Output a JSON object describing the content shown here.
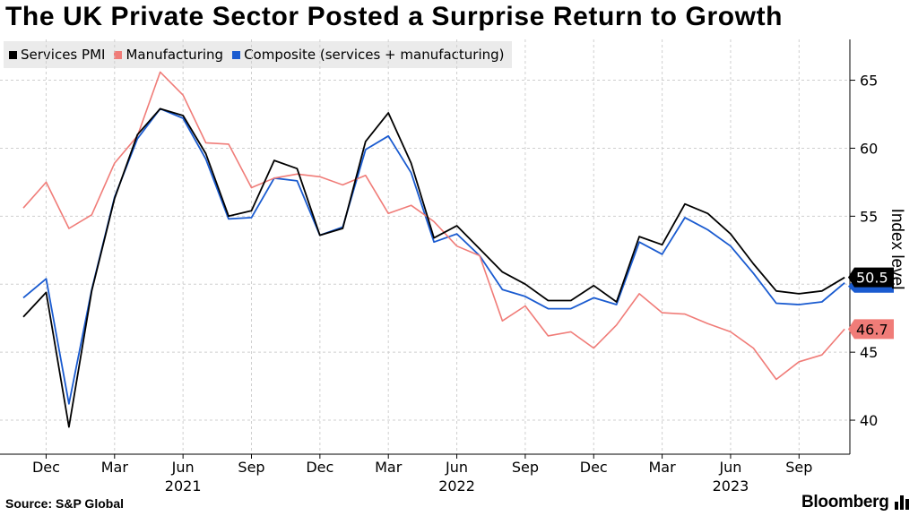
{
  "header": {
    "title": "The UK Private Sector Posted a Surprise Return to Growth"
  },
  "footer": {
    "source": "Source: S&P Global",
    "brand": "Bloomberg"
  },
  "colors": {
    "services": "#000000",
    "manufacturing": "#f07c78",
    "composite": "#1a5bd0",
    "grid": "#cfcfcf"
  },
  "chart_data": {
    "type": "line",
    "title": "The UK Private Sector Posted a Surprise Return to Growth",
    "ylabel": "Index level",
    "xlabel": "",
    "ylim": [
      37.5,
      68
    ],
    "yticks": [
      "40",
      "45",
      "50",
      "55",
      "60",
      "65"
    ],
    "x": [
      "Nov 2020",
      "Dec 2020",
      "Jan 2021",
      "Feb 2021",
      "Mar 2021",
      "Apr 2021",
      "May 2021",
      "Jun 2021",
      "Jul 2021",
      "Aug 2021",
      "Sep 2021",
      "Oct 2021",
      "Nov 2021",
      "Dec 2021",
      "Jan 2022",
      "Feb 2022",
      "Mar 2022",
      "Apr 2022",
      "May 2022",
      "Jun 2022",
      "Jul 2022",
      "Aug 2022",
      "Sep 2022",
      "Oct 2022",
      "Nov 2022",
      "Dec 2022",
      "Jan 2023",
      "Feb 2023",
      "Mar 2023",
      "Apr 2023",
      "May 2023",
      "Jun 2023",
      "Jul 2023",
      "Aug 2023",
      "Sep 2023",
      "Oct 2023",
      "Nov 2023"
    ],
    "xticks": [
      {
        "month": "Dec",
        "index": 1,
        "year": ""
      },
      {
        "month": "Mar",
        "index": 4,
        "year": ""
      },
      {
        "month": "Jun",
        "index": 7,
        "year": "2021"
      },
      {
        "month": "Sep",
        "index": 10,
        "year": ""
      },
      {
        "month": "Dec",
        "index": 13,
        "year": ""
      },
      {
        "month": "Mar",
        "index": 16,
        "year": ""
      },
      {
        "month": "Jun",
        "index": 19,
        "year": "2022"
      },
      {
        "month": "Sep",
        "index": 22,
        "year": ""
      },
      {
        "month": "Dec",
        "index": 25,
        "year": ""
      },
      {
        "month": "Mar",
        "index": 28,
        "year": ""
      },
      {
        "month": "Jun",
        "index": 31,
        "year": "2023"
      },
      {
        "month": "Sep",
        "index": 34,
        "year": ""
      }
    ],
    "series": [
      {
        "key": "composite",
        "name": "Composite (services + manufacturing)",
        "values": [
          49.0,
          50.4,
          41.2,
          49.6,
          56.4,
          60.7,
          62.9,
          62.2,
          59.2,
          54.8,
          54.9,
          57.8,
          57.6,
          53.6,
          54.2,
          59.9,
          60.9,
          58.2,
          53.1,
          53.7,
          52.1,
          49.6,
          49.1,
          48.2,
          48.2,
          49.0,
          48.5,
          53.1,
          52.2,
          54.9,
          54.0,
          52.8,
          50.8,
          48.6,
          48.5,
          48.7,
          50.1
        ],
        "last_label": ""
      },
      {
        "key": "manufacturing",
        "name": "Manufacturing",
        "values": [
          55.6,
          57.5,
          54.1,
          55.1,
          58.9,
          60.9,
          65.6,
          63.9,
          60.4,
          60.3,
          57.1,
          57.8,
          58.1,
          57.9,
          57.3,
          58.0,
          55.2,
          55.8,
          54.6,
          52.8,
          52.1,
          47.3,
          48.4,
          46.2,
          46.5,
          45.3,
          47.0,
          49.3,
          47.9,
          47.8,
          47.1,
          46.5,
          45.3,
          43.0,
          44.3,
          44.8,
          46.7
        ],
        "last_label": "46.7"
      },
      {
        "key": "services",
        "name": "Services PMI",
        "values": [
          47.6,
          49.4,
          39.5,
          49.5,
          56.3,
          61.0,
          62.9,
          62.4,
          59.6,
          55.0,
          55.4,
          59.1,
          58.5,
          53.6,
          54.1,
          60.5,
          62.6,
          58.9,
          53.4,
          54.3,
          52.6,
          50.9,
          50.0,
          48.8,
          48.8,
          49.9,
          48.7,
          53.5,
          52.9,
          55.9,
          55.2,
          53.7,
          51.5,
          49.5,
          49.3,
          49.5,
          50.5
        ],
        "last_label": "50.5"
      }
    ]
  }
}
